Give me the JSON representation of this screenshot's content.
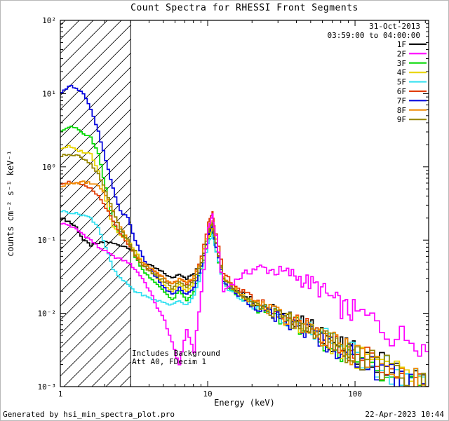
{
  "header": {
    "date": "31-Oct-2013",
    "time_range": "03:59:00 to 04:00:00"
  },
  "footer": {
    "left": "Generated by hsi_min_spectra_plot.pro",
    "right": "22-Apr-2023 10:44"
  },
  "chart_data": {
    "type": "line",
    "title": "Count Spectra for RHESSI Front Segments",
    "xlabel": "Energy (keV)",
    "ylabel": "counts cm⁻² s⁻¹ keV⁻¹",
    "xscale": "log",
    "yscale": "log",
    "xlim": [
      1,
      316
    ],
    "ylim": [
      0.001,
      100
    ],
    "x_tick_values": [
      1,
      10,
      100
    ],
    "x_tick_labels": [
      "1",
      "10",
      "100"
    ],
    "y_tick_values": [
      0.001,
      0.01,
      0.1,
      1,
      10,
      100
    ],
    "y_tick_labels": [
      "10⁻³",
      "10⁻²",
      "10⁻¹",
      "10⁰",
      "10¹",
      "10²"
    ],
    "grid": false,
    "legend_position": "top-right-inside",
    "hatch_region_kev": [
      1,
      3
    ],
    "annotations": [
      "Includes Background",
      "Att A0, FDecim 1"
    ],
    "x_kev": [
      1.0,
      1.12,
      1.26,
      1.41,
      1.58,
      1.78,
      2.0,
      2.24,
      2.51,
      2.82,
      3.16,
      3.55,
      3.98,
      4.47,
      5.01,
      5.62,
      6.31,
      7.08,
      7.94,
      8.91,
      10.0,
      10.7,
      11.2,
      12.6,
      14.1,
      15.8,
      17.8,
      20.0,
      22.4,
      25.1,
      28.2,
      31.6,
      35.5,
      39.8,
      44.7,
      50.1,
      56.2,
      63.1,
      70.8,
      79.4,
      89.1,
      100,
      126,
      158,
      200,
      251,
      300
    ],
    "series": [
      {
        "name": "1F",
        "color": "#000000",
        "y": [
          0.2,
          0.18,
          0.15,
          0.1,
          0.085,
          0.09,
          0.095,
          0.09,
          0.085,
          0.08,
          0.07,
          0.05,
          0.045,
          0.04,
          0.035,
          0.03,
          0.035,
          0.03,
          0.035,
          0.05,
          0.12,
          0.15,
          0.09,
          0.03,
          0.025,
          0.02,
          0.018,
          0.015,
          0.013,
          0.012,
          0.011,
          0.009,
          0.0085,
          0.008,
          0.007,
          0.0065,
          0.005,
          0.0045,
          0.004,
          0.0035,
          0.003,
          0.0028,
          0.0022,
          0.0018,
          0.0014,
          0.0012,
          0.001
        ]
      },
      {
        "name": "2F",
        "color": "#ff00ff",
        "y": [
          0.17,
          0.16,
          0.14,
          0.12,
          0.1,
          0.08,
          0.07,
          0.06,
          0.055,
          0.05,
          0.04,
          0.03,
          0.02,
          0.012,
          0.008,
          0.004,
          0.002,
          0.006,
          0.003,
          0.02,
          0.15,
          0.22,
          0.12,
          0.02,
          0.025,
          0.03,
          0.035,
          0.04,
          0.042,
          0.04,
          0.038,
          0.036,
          0.035,
          0.032,
          0.028,
          0.025,
          0.022,
          0.018,
          0.015,
          0.012,
          0.011,
          0.01,
          0.008,
          0.006,
          0.0045,
          0.005,
          0.003
        ]
      },
      {
        "name": "3F",
        "color": "#00d800",
        "y": [
          3.2,
          3.5,
          3.4,
          2.8,
          2.5,
          1.5,
          0.5,
          0.18,
          0.12,
          0.1,
          0.06,
          0.04,
          0.03,
          0.025,
          0.02,
          0.015,
          0.02,
          0.015,
          0.02,
          0.04,
          0.1,
          0.13,
          0.07,
          0.025,
          0.02,
          0.018,
          0.015,
          0.013,
          0.011,
          0.01,
          0.009,
          0.008,
          0.0075,
          0.007,
          0.006,
          0.0055,
          0.0045,
          0.004,
          0.0035,
          0.003,
          0.0028,
          0.0025,
          0.002,
          0.0016,
          0.0013,
          0.0011,
          0.0009
        ]
      },
      {
        "name": "4F",
        "color": "#e8d400",
        "y": [
          1.8,
          1.9,
          1.7,
          1.6,
          1.5,
          0.9,
          0.35,
          0.15,
          0.12,
          0.1,
          0.07,
          0.05,
          0.04,
          0.03,
          0.025,
          0.02,
          0.025,
          0.02,
          0.025,
          0.045,
          0.11,
          0.14,
          0.08,
          0.028,
          0.022,
          0.019,
          0.016,
          0.014,
          0.012,
          0.011,
          0.0095,
          0.0085,
          0.008,
          0.0072,
          0.0065,
          0.006,
          0.005,
          0.0042,
          0.0038,
          0.0032,
          0.0029,
          0.0026,
          0.0021,
          0.0017,
          0.0013,
          0.0011,
          0.00095
        ]
      },
      {
        "name": "5F",
        "color": "#30e0f0",
        "y": [
          0.25,
          0.24,
          0.23,
          0.22,
          0.2,
          0.15,
          0.08,
          0.04,
          0.03,
          0.025,
          0.02,
          0.018,
          0.016,
          0.015,
          0.014,
          0.013,
          0.015,
          0.013,
          0.018,
          0.035,
          0.09,
          0.12,
          0.07,
          0.025,
          0.02,
          0.017,
          0.015,
          0.013,
          0.012,
          0.011,
          0.01,
          0.0088,
          0.008,
          0.0073,
          0.0066,
          0.006,
          0.0052,
          0.0046,
          0.004,
          0.0034,
          0.003,
          0.0027,
          0.0022,
          0.0018,
          0.0014,
          0.0012,
          0.001
        ]
      },
      {
        "name": "6F",
        "color": "#e03a00",
        "y": [
          0.6,
          0.62,
          0.6,
          0.55,
          0.5,
          0.4,
          0.28,
          0.18,
          0.12,
          0.09,
          0.06,
          0.045,
          0.04,
          0.035,
          0.03,
          0.025,
          0.03,
          0.025,
          0.03,
          0.06,
          0.18,
          0.25,
          0.12,
          0.035,
          0.028,
          0.022,
          0.018,
          0.016,
          0.014,
          0.012,
          0.011,
          0.0095,
          0.0085,
          0.0078,
          0.007,
          0.0063,
          0.0053,
          0.0047,
          0.0041,
          0.0036,
          0.0031,
          0.0028,
          0.0023,
          0.0018,
          0.0014,
          0.0012,
          0.001
        ]
      },
      {
        "name": "7F",
        "color": "#0000dd",
        "y": [
          10.0,
          13.0,
          12.0,
          10.0,
          6.0,
          3.0,
          1.2,
          0.5,
          0.25,
          0.2,
          0.1,
          0.06,
          0.04,
          0.03,
          0.022,
          0.018,
          0.022,
          0.018,
          0.022,
          0.045,
          0.12,
          0.16,
          0.08,
          0.028,
          0.022,
          0.018,
          0.015,
          0.013,
          0.012,
          0.01,
          0.009,
          0.008,
          0.0072,
          0.0066,
          0.006,
          0.0055,
          0.0046,
          0.004,
          0.0036,
          0.0031,
          0.0028,
          0.0025,
          0.002,
          0.0016,
          0.0013,
          0.0011,
          0.0009
        ]
      },
      {
        "name": "8F",
        "color": "#f08800",
        "y": [
          0.55,
          0.58,
          0.6,
          0.62,
          0.6,
          0.55,
          0.4,
          0.25,
          0.15,
          0.1,
          0.065,
          0.05,
          0.042,
          0.036,
          0.03,
          0.026,
          0.03,
          0.026,
          0.032,
          0.055,
          0.14,
          0.18,
          0.1,
          0.03,
          0.024,
          0.02,
          0.017,
          0.015,
          0.013,
          0.0115,
          0.0105,
          0.009,
          0.0082,
          0.0075,
          0.0068,
          0.0061,
          0.0051,
          0.0045,
          0.0039,
          0.0034,
          0.003,
          0.0027,
          0.0021,
          0.0017,
          0.0013,
          0.0011,
          0.00095
        ]
      },
      {
        "name": "9F",
        "color": "#948400",
        "y": [
          1.4,
          1.5,
          1.45,
          1.3,
          1.1,
          0.8,
          0.45,
          0.25,
          0.14,
          0.1,
          0.06,
          0.045,
          0.038,
          0.032,
          0.027,
          0.022,
          0.027,
          0.022,
          0.028,
          0.05,
          0.13,
          0.17,
          0.09,
          0.03,
          0.024,
          0.02,
          0.017,
          0.014,
          0.0125,
          0.011,
          0.01,
          0.0088,
          0.008,
          0.0073,
          0.0066,
          0.006,
          0.005,
          0.0044,
          0.0039,
          0.0033,
          0.003,
          0.0026,
          0.0021,
          0.0017,
          0.0013,
          0.0011,
          0.0009
        ]
      }
    ]
  }
}
